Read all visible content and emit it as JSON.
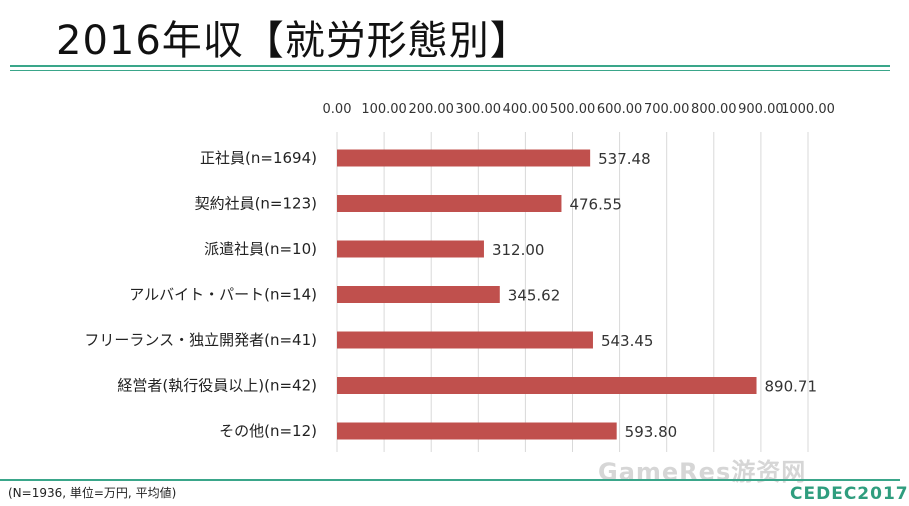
{
  "page": {
    "title": "2016年収【就労形態別】",
    "footnote": "(N=1936, 単位=万円, 平均値)",
    "watermark": "GameRes游资网",
    "logo": "CEDEC2017"
  },
  "colors": {
    "bar": "#c0504d",
    "grid": "#d9d9d9",
    "rule": "#3aa68a"
  },
  "chart_data": {
    "type": "bar",
    "orientation": "horizontal",
    "categories": [
      "正社員(n=1694)",
      "契約社員(n=123)",
      "派遣社員(n=10)",
      "アルバイト・パート(n=14)",
      "フリーランス・独立開発者(n=41)",
      "経営者(執行役員以上)(n=42)",
      "その他(n=12)"
    ],
    "values": [
      537.48,
      476.55,
      312.0,
      345.62,
      543.45,
      890.71,
      593.8
    ],
    "value_labels": [
      "537.48",
      "476.55",
      "312.00",
      "345.62",
      "543.45",
      "890.71",
      "593.80"
    ],
    "xlim": [
      0,
      1000
    ],
    "xticks": [
      0,
      100,
      200,
      300,
      400,
      500,
      600,
      700,
      800,
      900,
      1000
    ],
    "xtick_labels": [
      "0.00",
      "100.00",
      "200.00",
      "300.00",
      "400.00",
      "500.00",
      "600.00",
      "700.00",
      "800.00",
      "900.00",
      "1000.00"
    ],
    "axis_position": "top",
    "grid": true,
    "legend": "none"
  }
}
